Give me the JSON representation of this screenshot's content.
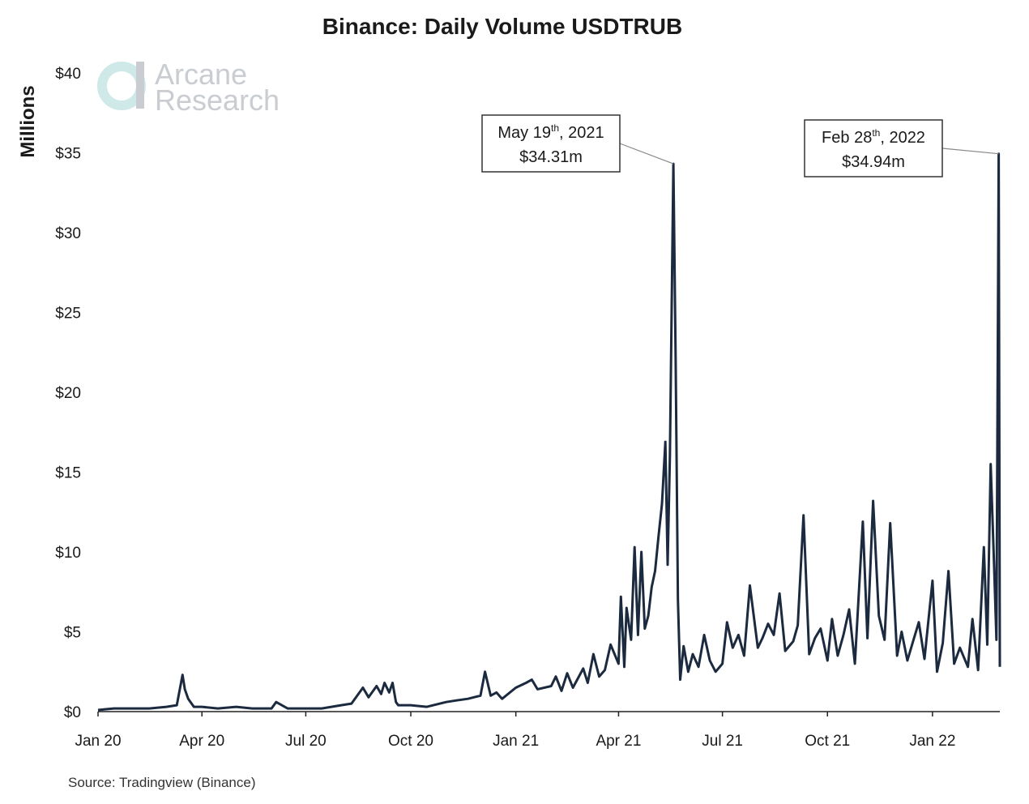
{
  "logo": {
    "line1": "Arcane",
    "line2": "Research"
  },
  "source": "Source: Tradingview (Binance)",
  "colors": {
    "line": "#1b2a3e",
    "axis": "#222222",
    "logo": "#cfe9e8"
  },
  "chart_data": {
    "type": "line",
    "title": "Binance: Daily Volume USDTRUB",
    "xlabel": "",
    "ylabel": "Millions",
    "ylim": [
      0,
      40
    ],
    "yticks": [
      0,
      5,
      10,
      15,
      20,
      25,
      30,
      35,
      40
    ],
    "ytick_labels": [
      "$0",
      "$5",
      "$10",
      "$15",
      "$20",
      "$25",
      "$30",
      "$35",
      "$40"
    ],
    "xlim": [
      "2020-01-01",
      "2022-03-01"
    ],
    "xticks": [
      "2020-01-01",
      "2020-04-01",
      "2020-07-01",
      "2020-10-01",
      "2021-01-01",
      "2021-04-01",
      "2021-07-01",
      "2021-10-01",
      "2022-01-01"
    ],
    "xtick_labels": [
      "Jan 20",
      "Apr 20",
      "Jul 20",
      "Oct 20",
      "Jan 21",
      "Apr 21",
      "Jul 21",
      "Oct 21",
      "Jan 22"
    ],
    "grid": false,
    "legend": "none",
    "series": [
      {
        "x": [
          "2020-01-01",
          "2020-01-15",
          "2020-02-01",
          "2020-02-15",
          "2020-03-01",
          "2020-03-10",
          "2020-03-15",
          "2020-03-17",
          "2020-03-20",
          "2020-03-25",
          "2020-04-01",
          "2020-04-15",
          "2020-05-01",
          "2020-05-15",
          "2020-06-01",
          "2020-06-05",
          "2020-06-15",
          "2020-07-01",
          "2020-07-15",
          "2020-08-01",
          "2020-08-10",
          "2020-08-20",
          "2020-08-25",
          "2020-09-01",
          "2020-09-05",
          "2020-09-08",
          "2020-09-12",
          "2020-09-15",
          "2020-09-18",
          "2020-09-20",
          "2020-10-01",
          "2020-10-15",
          "2020-11-01",
          "2020-11-10",
          "2020-11-20",
          "2020-12-01",
          "2020-12-05",
          "2020-12-10",
          "2020-12-15",
          "2020-12-20",
          "2021-01-01",
          "2021-01-10",
          "2021-01-15",
          "2021-01-20",
          "2021-02-01",
          "2021-02-05",
          "2021-02-10",
          "2021-02-15",
          "2021-02-20",
          "2021-03-01",
          "2021-03-05",
          "2021-03-10",
          "2021-03-15",
          "2021-03-20",
          "2021-03-25",
          "2021-04-01",
          "2021-04-03",
          "2021-04-06",
          "2021-04-08",
          "2021-04-12",
          "2021-04-15",
          "2021-04-18",
          "2021-04-21",
          "2021-04-24",
          "2021-04-27",
          "2021-04-30",
          "2021-05-03",
          "2021-05-06",
          "2021-05-09",
          "2021-05-12",
          "2021-05-14",
          "2021-05-16",
          "2021-05-19",
          "2021-05-21",
          "2021-05-23",
          "2021-05-25",
          "2021-05-28",
          "2021-06-01",
          "2021-06-05",
          "2021-06-10",
          "2021-06-15",
          "2021-06-20",
          "2021-06-25",
          "2021-07-01",
          "2021-07-05",
          "2021-07-10",
          "2021-07-15",
          "2021-07-20",
          "2021-07-25",
          "2021-08-01",
          "2021-08-05",
          "2021-08-10",
          "2021-08-15",
          "2021-08-20",
          "2021-08-25",
          "2021-09-01",
          "2021-09-05",
          "2021-09-10",
          "2021-09-15",
          "2021-09-20",
          "2021-09-25",
          "2021-10-01",
          "2021-10-05",
          "2021-10-10",
          "2021-10-15",
          "2021-10-20",
          "2021-10-25",
          "2021-11-01",
          "2021-11-05",
          "2021-11-10",
          "2021-11-15",
          "2021-11-20",
          "2021-11-25",
          "2021-12-01",
          "2021-12-05",
          "2021-12-10",
          "2021-12-15",
          "2021-12-20",
          "2021-12-25",
          "2022-01-01",
          "2022-01-05",
          "2022-01-10",
          "2022-01-15",
          "2022-01-20",
          "2022-01-25",
          "2022-02-01",
          "2022-02-05",
          "2022-02-10",
          "2022-02-15",
          "2022-02-18",
          "2022-02-21",
          "2022-02-24",
          "2022-02-26",
          "2022-02-28",
          "2022-03-01"
        ],
        "values": [
          0.1,
          0.2,
          0.2,
          0.2,
          0.3,
          0.4,
          2.3,
          1.4,
          0.8,
          0.3,
          0.3,
          0.2,
          0.3,
          0.2,
          0.2,
          0.6,
          0.2,
          0.2,
          0.2,
          0.4,
          0.5,
          1.5,
          0.9,
          1.6,
          1.1,
          1.8,
          1.2,
          1.8,
          0.6,
          0.4,
          0.4,
          0.3,
          0.6,
          0.7,
          0.8,
          1.0,
          2.5,
          1.0,
          1.2,
          0.8,
          1.5,
          1.8,
          2.0,
          1.4,
          1.6,
          2.2,
          1.3,
          2.4,
          1.5,
          2.7,
          1.8,
          3.6,
          2.2,
          2.6,
          4.2,
          3.0,
          7.2,
          2.8,
          6.5,
          4.5,
          10.3,
          4.8,
          10.0,
          5.2,
          6.0,
          7.8,
          8.8,
          11.0,
          13.0,
          16.9,
          9.2,
          16.0,
          34.31,
          22.0,
          7.0,
          2.0,
          4.1,
          2.5,
          3.6,
          2.8,
          4.8,
          3.2,
          2.5,
          3.0,
          5.6,
          4.0,
          4.8,
          3.5,
          7.9,
          4.0,
          4.6,
          5.5,
          4.8,
          7.4,
          3.8,
          4.4,
          5.4,
          12.3,
          3.6,
          4.6,
          5.2,
          3.2,
          5.8,
          3.5,
          4.8,
          6.4,
          3.0,
          11.9,
          4.6,
          13.2,
          6.0,
          4.5,
          11.8,
          3.5,
          5.0,
          3.2,
          4.4,
          5.6,
          3.3,
          8.2,
          2.5,
          4.3,
          8.8,
          3.0,
          4.0,
          2.8,
          5.8,
          2.6,
          10.3,
          4.2,
          15.5,
          9.0,
          4.5,
          34.94,
          2.8
        ]
      }
    ],
    "annotations": [
      {
        "date": "2021-05-19",
        "value": 34.31,
        "label_pre": "May 19",
        "label_sup": "th",
        "label_post": ", 2021",
        "value_label": "$34.31m"
      },
      {
        "date": "2022-02-28",
        "value": 34.94,
        "label_pre": "Feb 28",
        "label_sup": "th",
        "label_post": ", 2022",
        "value_label": "$34.94m"
      }
    ]
  }
}
